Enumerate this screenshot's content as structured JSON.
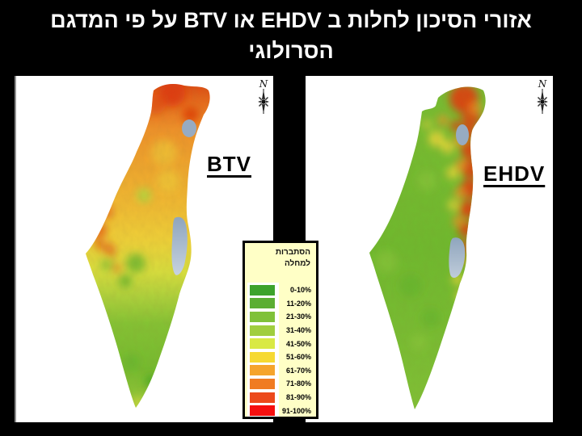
{
  "title": {
    "line1": "אזורי הסיכון לחלות ב EHDV או BTV על פי המדגם",
    "line2": "הסרולוגי"
  },
  "maps": {
    "left": {
      "label": "BTV",
      "compass_letter": "N"
    },
    "right": {
      "label": "EHDV",
      "compass_letter": "N"
    }
  },
  "legend": {
    "header_line1": "הסתברות",
    "header_line2": "למחלה",
    "background": "#FFFFC6",
    "items": [
      {
        "range": "0-10%",
        "color": "#3DA32C"
      },
      {
        "range": "11-20%",
        "color": "#5BAE33"
      },
      {
        "range": "21-30%",
        "color": "#7FC139"
      },
      {
        "range": "31-40%",
        "color": "#A0CE3E"
      },
      {
        "range": "41-50%",
        "color": "#D9E944"
      },
      {
        "range": "51-60%",
        "color": "#F6D932"
      },
      {
        "range": "61-70%",
        "color": "#F5A42C"
      },
      {
        "range": "71-80%",
        "color": "#F07C22"
      },
      {
        "range": "81-90%",
        "color": "#EC491B"
      },
      {
        "range": "91-100%",
        "color": "#F50F0F"
      }
    ]
  },
  "colors": {
    "background": "#000000",
    "title_text": "#FFFFFF",
    "panel_background": "#FFFFFF",
    "map_label_text": "#000000",
    "sea": "#97ABC2",
    "legend_border": "#000000"
  }
}
